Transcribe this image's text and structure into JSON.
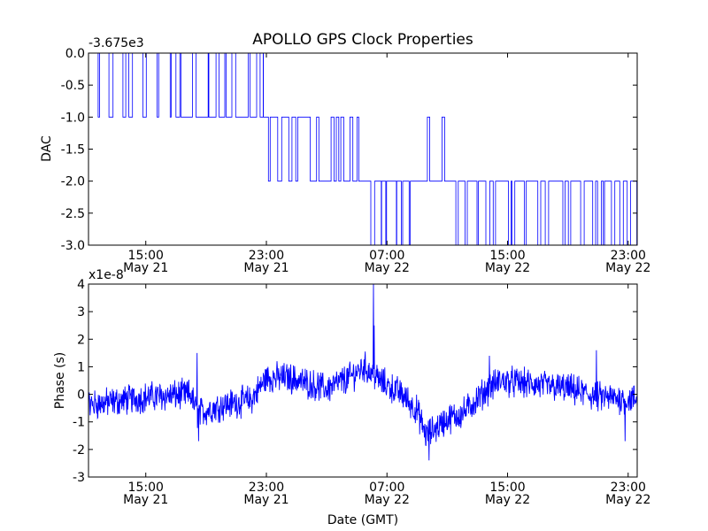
{
  "title": "APOLLO GPS Clock Properties",
  "colors": {
    "line": "#0000ff",
    "axes": "#000000",
    "background": "#ffffff"
  },
  "chart_data": [
    {
      "type": "line",
      "name": "dac",
      "ylabel": "DAC",
      "offset_label": "-3.675e3",
      "ylim": [
        -3.0,
        0.0
      ],
      "yticks": [
        {
          "value": 0.0,
          "label": "0.0"
        },
        {
          "value": -0.5,
          "label": "-0.5"
        },
        {
          "value": -1.0,
          "label": "-1.0"
        },
        {
          "value": -1.5,
          "label": "-1.5"
        },
        {
          "value": -2.0,
          "label": "-2.0"
        },
        {
          "value": -2.5,
          "label": "-2.5"
        },
        {
          "value": -3.0,
          "label": "-3.0"
        }
      ],
      "xlim_hours": [
        11.2,
        47.6
      ],
      "xticks": [
        {
          "hour": 15,
          "time": "15:00",
          "date": "May 21"
        },
        {
          "hour": 23,
          "time": "23:00",
          "date": "May 21"
        },
        {
          "hour": 31,
          "time": "07:00",
          "date": "May 22"
        },
        {
          "hour": 39,
          "time": "15:00",
          "date": "May 22"
        },
        {
          "hour": 47,
          "time": "23:00",
          "date": "May 22"
        }
      ],
      "series": [
        {
          "name": "DAC",
          "levels": [
            {
              "from": 11.2,
              "to": 17.0,
              "base": 0.0,
              "alt": -1.0
            },
            {
              "from": 17.0,
              "to": 22.8,
              "base": -1.0,
              "alt": 0.0
            },
            {
              "from": 22.8,
              "to": 26.0,
              "base": -1.0,
              "alt": -2.0
            },
            {
              "from": 26.0,
              "to": 29.5,
              "base": -2.0,
              "alt": -1.0
            },
            {
              "from": 29.5,
              "to": 33.2,
              "base": -2.0,
              "alt": -3.0
            },
            {
              "from": 33.2,
              "to": 35.5,
              "base": -2.0,
              "alt": -1.0
            },
            {
              "from": 35.5,
              "to": 47.6,
              "base": -2.0,
              "alt": -3.0
            }
          ]
        }
      ]
    },
    {
      "type": "line",
      "name": "phase",
      "ylabel": "Phase (s)",
      "xlabel": "Date (GMT)",
      "offset_label": "x1e-8",
      "ylim": [
        -3,
        4
      ],
      "yticks": [
        {
          "value": 4,
          "label": "4"
        },
        {
          "value": 3,
          "label": "3"
        },
        {
          "value": 2,
          "label": "2"
        },
        {
          "value": 1,
          "label": "1"
        },
        {
          "value": 0,
          "label": "0"
        },
        {
          "value": -1,
          "label": "-1"
        },
        {
          "value": -2,
          "label": "-2"
        },
        {
          "value": -3,
          "label": "-3"
        }
      ],
      "xlim_hours": [
        11.2,
        47.6
      ],
      "xticks": [
        {
          "hour": 15,
          "time": "15:00",
          "date": "May 21"
        },
        {
          "hour": 23,
          "time": "23:00",
          "date": "May 21"
        },
        {
          "hour": 31,
          "time": "07:00",
          "date": "May 22"
        },
        {
          "hour": 39,
          "time": "15:00",
          "date": "May 22"
        },
        {
          "hour": 47,
          "time": "23:00",
          "date": "May 22"
        }
      ],
      "series": [
        {
          "name": "Phase",
          "trend": [
            {
              "hour": 11.2,
              "value": -0.4
            },
            {
              "hour": 15.0,
              "value": -0.1
            },
            {
              "hour": 18.0,
              "value": 0.0
            },
            {
              "hour": 18.4,
              "value": -0.7
            },
            {
              "hour": 20.0,
              "value": -0.4
            },
            {
              "hour": 22.0,
              "value": -0.2
            },
            {
              "hour": 23.0,
              "value": 0.6
            },
            {
              "hour": 24.5,
              "value": 0.6
            },
            {
              "hour": 27.0,
              "value": 0.2
            },
            {
              "hour": 28.5,
              "value": 0.6
            },
            {
              "hour": 29.5,
              "value": 1.0
            },
            {
              "hour": 30.5,
              "value": 0.5
            },
            {
              "hour": 32.0,
              "value": 0.0
            },
            {
              "hour": 33.0,
              "value": -0.6
            },
            {
              "hour": 33.6,
              "value": -1.5
            },
            {
              "hour": 35.0,
              "value": -0.9
            },
            {
              "hour": 36.0,
              "value": -0.7
            },
            {
              "hour": 37.5,
              "value": 0.1
            },
            {
              "hour": 38.5,
              "value": 0.5
            },
            {
              "hour": 40.0,
              "value": 0.4
            },
            {
              "hour": 43.0,
              "value": 0.2
            },
            {
              "hour": 45.0,
              "value": -0.1
            },
            {
              "hour": 47.6,
              "value": -0.2
            }
          ],
          "spikes": [
            {
              "hour": 18.4,
              "value": 1.5
            },
            {
              "hour": 18.5,
              "value": -1.7
            },
            {
              "hour": 30.1,
              "value": 4.0
            },
            {
              "hour": 30.15,
              "value": 2.5
            },
            {
              "hour": 33.8,
              "value": -2.4
            },
            {
              "hour": 37.8,
              "value": 1.4
            },
            {
              "hour": 44.9,
              "value": 1.6
            },
            {
              "hour": 46.8,
              "value": -1.7
            }
          ]
        }
      ]
    }
  ]
}
